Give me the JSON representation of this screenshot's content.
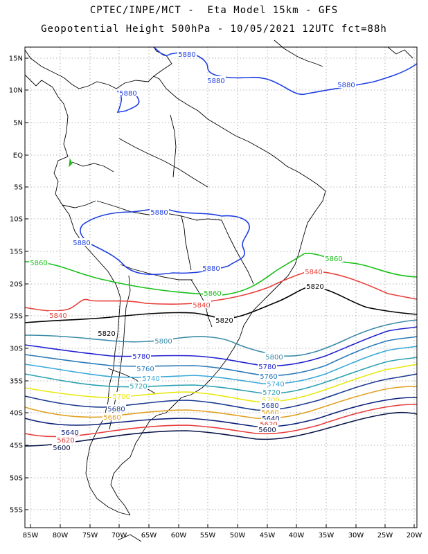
{
  "header": {
    "line1": "CPTEC/INPE/MCT -  Eta Model 15km - GFS",
    "line2": "Geopotential Height 500hPa - 10/05/2021 12UTC fct=88h"
  },
  "map": {
    "lat_ticks": [
      "15N",
      "10N",
      "5N",
      "EQ",
      "5S",
      "10S",
      "15S",
      "20S",
      "25S",
      "30S",
      "35S",
      "40S",
      "45S",
      "50S",
      "55S"
    ],
    "lon_ticks": [
      "85W",
      "80W",
      "75W",
      "70W",
      "65W",
      "60W",
      "55W",
      "50W",
      "45W",
      "40W",
      "35W",
      "30W",
      "25W",
      "20W"
    ]
  },
  "contours": [
    {
      "level": "5880",
      "color": "#1f3fe0",
      "labels": [
        "5880",
        "5880",
        "5880",
        "5880",
        "5880",
        "5880",
        "5880"
      ]
    },
    {
      "level": "5860",
      "color": "#18c018",
      "labels": [
        "5860",
        "5860",
        "5860"
      ]
    },
    {
      "level": "5840",
      "color": "#e8403a",
      "labels": [
        "5840",
        "5840",
        "5840"
      ]
    },
    {
      "level": "5820",
      "color": "#000000",
      "labels": [
        "5820",
        "5820",
        "5820"
      ]
    },
    {
      "level": "5800",
      "color": "#3a8aa8",
      "labels": [
        "5800",
        "5800"
      ]
    },
    {
      "level": "5780",
      "color": "#2020d0",
      "labels": [
        "5780",
        "5780"
      ]
    },
    {
      "level": "5760",
      "color": "#2a7ab8",
      "labels": [
        "5760",
        "5760"
      ]
    },
    {
      "level": "5740",
      "color": "#38a8d8",
      "labels": [
        "5740",
        "5740"
      ]
    },
    {
      "level": "5720",
      "color": "#2aa0b0",
      "labels": [
        "5720",
        "5720"
      ]
    },
    {
      "level": "5700",
      "color": "#e8e810",
      "labels": [
        "5700",
        "5700"
      ]
    },
    {
      "level": "5680",
      "color": "#1a3a90",
      "labels": [
        "5680",
        "5680"
      ]
    },
    {
      "level": "5660",
      "color": "#e0a020",
      "labels": [
        "5660",
        "5660"
      ]
    },
    {
      "level": "5640",
      "color": "#0a1e78",
      "labels": [
        "5640",
        "5640"
      ]
    },
    {
      "level": "5620",
      "color": "#e83a3a",
      "labels": [
        "5620",
        "5620"
      ]
    },
    {
      "level": "5600",
      "color": "#0a1448",
      "labels": [
        "5600",
        "5600"
      ]
    }
  ]
}
